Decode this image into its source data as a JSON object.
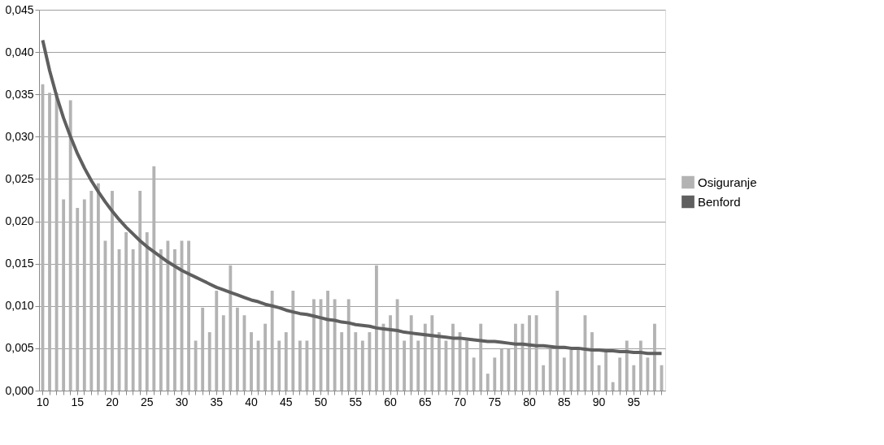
{
  "chart_data": {
    "type": "bar",
    "categories": [
      "10",
      null,
      null,
      null,
      null,
      "15",
      null,
      null,
      null,
      null,
      "20",
      null,
      null,
      null,
      null,
      "25",
      null,
      null,
      null,
      null,
      "30",
      null,
      null,
      null,
      null,
      "35",
      null,
      null,
      null,
      null,
      "40",
      null,
      null,
      null,
      null,
      "45",
      null,
      null,
      null,
      null,
      "50",
      null,
      null,
      null,
      null,
      "55",
      null,
      null,
      null,
      null,
      "60",
      null,
      null,
      null,
      null,
      "65",
      null,
      null,
      null,
      null,
      "70",
      null,
      null,
      null,
      null,
      "75",
      null,
      null,
      null,
      null,
      "80",
      null,
      null,
      null,
      null,
      "85",
      null,
      null,
      null,
      null,
      "90",
      null,
      null,
      null,
      null,
      "95",
      null,
      null,
      null,
      null
    ],
    "series": [
      {
        "name": "Osiguranje",
        "color": "#b3b3b3",
        "values": [
          0.0362,
          0.0352,
          0.0352,
          0.0226,
          0.0343,
          0.0216,
          0.0226,
          0.0236,
          0.0245,
          0.0177,
          0.0236,
          0.0167,
          0.0187,
          0.0167,
          0.0236,
          0.0187,
          0.0265,
          0.0167,
          0.0177,
          0.0167,
          0.0177,
          0.0177,
          0.0059,
          0.0098,
          0.0069,
          0.0118,
          0.0089,
          0.0148,
          0.0098,
          0.0089,
          0.0069,
          0.0059,
          0.0079,
          0.0118,
          0.0059,
          0.0069,
          0.0118,
          0.0059,
          0.0059,
          0.0108,
          0.0108,
          0.0118,
          0.0108,
          0.0069,
          0.0108,
          0.0069,
          0.0059,
          0.0069,
          0.0148,
          0.0079,
          0.0089,
          0.0108,
          0.0059,
          0.0089,
          0.0059,
          0.0079,
          0.0089,
          0.0069,
          0.0059,
          0.0079,
          0.0069,
          0.0059,
          0.0039,
          0.0079,
          0.002,
          0.0039,
          0.0049,
          0.0049,
          0.0079,
          0.0079,
          0.0089,
          0.0089,
          0.003,
          0.0049,
          0.0118,
          0.0039,
          0.0049,
          0.0049,
          0.0089,
          0.0069,
          0.003,
          0.0049,
          0.001,
          0.0039,
          0.0059,
          0.003,
          0.0059,
          0.0039,
          0.0079,
          0.003
        ]
      },
      {
        "name": "Benford",
        "type": "line",
        "color": "#5f5f5f",
        "values": [
          0.0414,
          0.0378,
          0.0348,
          0.0322,
          0.03,
          0.028,
          0.0263,
          0.0248,
          0.0235,
          0.0223,
          0.0212,
          0.0202,
          0.0193,
          0.0185,
          0.0177,
          0.017,
          0.0164,
          0.0158,
          0.0152,
          0.0147,
          0.0142,
          0.0138,
          0.0134,
          0.013,
          0.0126,
          0.0122,
          0.0119,
          0.0116,
          0.0113,
          0.011,
          0.0107,
          0.0105,
          0.0102,
          0.01,
          0.0098,
          0.0095,
          0.0093,
          0.0091,
          0.009,
          0.0088,
          0.0086,
          0.0084,
          0.0083,
          0.0081,
          0.008,
          0.0078,
          0.0077,
          0.0076,
          0.0074,
          0.0073,
          0.0072,
          0.0071,
          0.0069,
          0.0068,
          0.0067,
          0.0066,
          0.0065,
          0.0064,
          0.0063,
          0.0062,
          0.0062,
          0.0061,
          0.006,
          0.0059,
          0.0058,
          0.0058,
          0.0057,
          0.0056,
          0.0055,
          0.0055,
          0.0054,
          0.0053,
          0.0053,
          0.0052,
          0.0051,
          0.0051,
          0.005,
          0.005,
          0.0049,
          0.0048,
          0.0048,
          0.0047,
          0.0047,
          0.0046,
          0.0046,
          0.0045,
          0.0045,
          0.0044,
          0.0044,
          0.0044
        ]
      }
    ],
    "ylim": [
      0,
      0.045
    ],
    "yticks": [
      {
        "value": 0,
        "label": "0,000"
      },
      {
        "value": 0.005,
        "label": "0,005"
      },
      {
        "value": 0.01,
        "label": "0,010"
      },
      {
        "value": 0.015,
        "label": "0,015"
      },
      {
        "value": 0.02,
        "label": "0,020"
      },
      {
        "value": 0.025,
        "label": "0,025"
      },
      {
        "value": 0.03,
        "label": "0,030"
      },
      {
        "value": 0.035,
        "label": "0,035"
      },
      {
        "value": 0.04,
        "label": "0,040"
      },
      {
        "value": 0.045,
        "label": "0,045"
      }
    ],
    "grid": "y",
    "legend": "right",
    "marker": "none",
    "line_style": "solid"
  }
}
